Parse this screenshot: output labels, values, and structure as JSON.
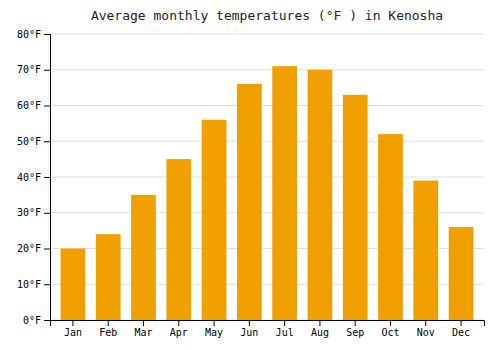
{
  "chart_data": {
    "type": "bar",
    "title": "Average monthly temperatures (°F ) in Kenosha",
    "categories": [
      "Jan",
      "Feb",
      "Mar",
      "Apr",
      "May",
      "Jun",
      "Jul",
      "Aug",
      "Sep",
      "Oct",
      "Nov",
      "Dec"
    ],
    "values": [
      20,
      24,
      35,
      45,
      56,
      66,
      71,
      70,
      63,
      52,
      39,
      26
    ],
    "color": "#F0A000",
    "ylim": [
      0,
      80
    ],
    "yticks": [
      {
        "value": 0,
        "label": "0°F"
      },
      {
        "value": 10,
        "label": "10°F"
      },
      {
        "value": 20,
        "label": "20°F"
      },
      {
        "value": 30,
        "label": "30°F"
      },
      {
        "value": 40,
        "label": "40°F"
      },
      {
        "value": 50,
        "label": "50°F"
      },
      {
        "value": 60,
        "label": "60°F"
      },
      {
        "value": 70,
        "label": "70°F"
      },
      {
        "value": 80,
        "label": "80°F"
      }
    ],
    "grid": true
  }
}
